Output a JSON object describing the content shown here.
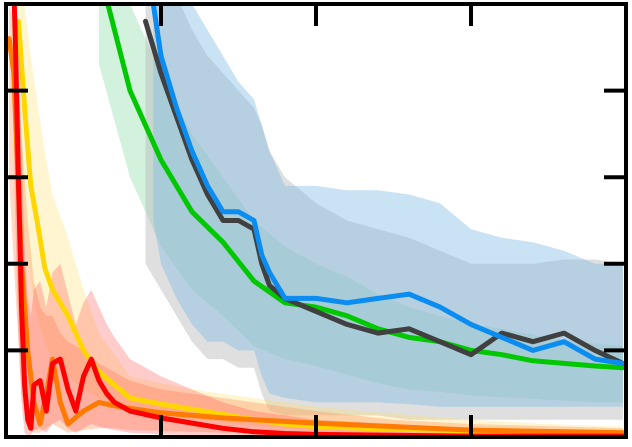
{
  "chart_data": {
    "type": "line",
    "title": "",
    "xlabel": "",
    "ylabel": "",
    "xlim": [
      0,
      400
    ],
    "ylim": [
      0,
      500
    ],
    "grid": false,
    "legend": "none",
    "x_ticks": [
      100,
      200,
      300
    ],
    "y_ticks": [
      100,
      200,
      300,
      400
    ],
    "series": [
      {
        "color": "#00c800",
        "band_color": "#7fd9a0",
        "band_opacity": 0.35,
        "x": [
          60,
          80,
          100,
          120,
          140,
          160,
          180,
          200,
          220,
          240,
          260,
          280,
          300,
          320,
          340,
          360,
          380,
          398
        ],
        "values": [
          540,
          400,
          320,
          260,
          225,
          180,
          155,
          150,
          140,
          125,
          115,
          110,
          100,
          95,
          88,
          85,
          82,
          80
        ],
        "band_low": [
          430,
          300,
          220,
          170,
          140,
          105,
          90,
          82,
          72,
          62,
          55,
          52,
          48,
          46,
          44,
          42,
          40,
          40
        ],
        "band_high": [
          600,
          500,
          420,
          350,
          300,
          250,
          220,
          200,
          185,
          165,
          150,
          140,
          130,
          125,
          118,
          112,
          108,
          105
        ]
      },
      {
        "color": "#404040",
        "band_color": "#b8b8b8",
        "band_opacity": 0.45,
        "x": [
          90,
          100,
          110,
          120,
          130,
          140,
          150,
          160,
          165,
          170,
          180,
          200,
          220,
          240,
          260,
          280,
          300,
          320,
          340,
          360,
          380,
          398
        ],
        "values": [
          480,
          420,
          370,
          320,
          280,
          250,
          250,
          240,
          200,
          175,
          160,
          145,
          130,
          120,
          125,
          110,
          95,
          120,
          110,
          120,
          100,
          85
        ],
        "band_low": [
          200,
          170,
          140,
          110,
          90,
          90,
          80,
          80,
          50,
          30,
          25,
          25,
          25,
          25,
          20,
          20,
          20,
          20,
          20,
          20,
          20,
          20
        ],
        "band_high": [
          560,
          540,
          510,
          470,
          440,
          420,
          400,
          380,
          360,
          330,
          300,
          270,
          250,
          240,
          230,
          215,
          200,
          200,
          200,
          205,
          205,
          200
        ]
      },
      {
        "color": "#0a8cf0",
        "band_color": "#78b9e6",
        "band_opacity": 0.4,
        "x": [
          95,
          100,
          110,
          120,
          130,
          140,
          150,
          160,
          165,
          170,
          180,
          200,
          220,
          240,
          260,
          280,
          300,
          320,
          340,
          360,
          380,
          398
        ],
        "values": [
          500,
          440,
          380,
          330,
          290,
          260,
          260,
          250,
          210,
          190,
          160,
          160,
          155,
          160,
          165,
          150,
          130,
          115,
          100,
          110,
          90,
          85
        ],
        "band_low": [
          250,
          200,
          160,
          130,
          110,
          110,
          100,
          100,
          70,
          50,
          45,
          40,
          40,
          40,
          38,
          35,
          35,
          35,
          35,
          35,
          35,
          35
        ],
        "band_high": [
          560,
          550,
          530,
          500,
          470,
          440,
          410,
          390,
          360,
          330,
          290,
          290,
          285,
          285,
          280,
          270,
          240,
          230,
          225,
          215,
          200,
          200
        ]
      },
      {
        "color": "#ffd600",
        "band_color": "#ffe066",
        "band_opacity": 0.3,
        "x": [
          8,
          12,
          16,
          20,
          25,
          30,
          40,
          50,
          60,
          70,
          80,
          100,
          120,
          140,
          160,
          180,
          200,
          250,
          300,
          350,
          398
        ],
        "values": [
          480,
          380,
          290,
          250,
          195,
          170,
          140,
          100,
          75,
          60,
          45,
          38,
          32,
          26,
          20,
          15,
          12,
          9,
          7,
          6,
          5
        ],
        "band_low": [
          300,
          230,
          180,
          140,
          110,
          90,
          70,
          55,
          45,
          38,
          30,
          26,
          21,
          17,
          13,
          10,
          8,
          6,
          5,
          4,
          3
        ],
        "band_high": [
          540,
          500,
          440,
          390,
          330,
          280,
          230,
          170,
          120,
          95,
          70,
          62,
          55,
          50,
          45,
          40,
          35,
          27,
          20,
          15,
          12
        ]
      },
      {
        "color": "#ff7a00",
        "band_color": "#ff9a66",
        "band_opacity": 0.4,
        "x": [
          2,
          5,
          10,
          14,
          18,
          22,
          26,
          30,
          35,
          40,
          50,
          60,
          70,
          80,
          100,
          120,
          140,
          160,
          180,
          200,
          250,
          300,
          398
        ],
        "values": [
          460,
          420,
          200,
          100,
          40,
          15,
          50,
          90,
          40,
          15,
          30,
          40,
          36,
          33,
          28,
          25,
          22,
          20,
          18,
          16,
          12,
          8,
          5
        ],
        "band_low": [
          300,
          200,
          50,
          10,
          5,
          5,
          10,
          15,
          10,
          5,
          8,
          10,
          10,
          8,
          7,
          6,
          5,
          5,
          4,
          4,
          3,
          2,
          2
        ],
        "band_high": [
          500,
          480,
          350,
          250,
          180,
          150,
          140,
          140,
          120,
          110,
          100,
          85,
          75,
          65,
          55,
          50,
          45,
          40,
          35,
          30,
          20,
          15,
          10
        ]
      },
      {
        "color": "#ff0000",
        "band_color": "#ff5555",
        "band_opacity": 0.3,
        "x": [
          5,
          6,
          8,
          10,
          12,
          14,
          16,
          18,
          22,
          26,
          30,
          35,
          40,
          45,
          50,
          55,
          60,
          65,
          70,
          80,
          100,
          120,
          140,
          160,
          180,
          200,
          250,
          300,
          398
        ],
        "values": [
          520,
          460,
          300,
          150,
          60,
          20,
          10,
          60,
          65,
          30,
          85,
          90,
          55,
          30,
          70,
          90,
          65,
          50,
          40,
          30,
          22,
          16,
          10,
          6,
          4,
          3,
          2,
          1,
          1
        ],
        "band_low": [
          350,
          250,
          120,
          40,
          5,
          2,
          2,
          8,
          10,
          5,
          15,
          20,
          10,
          5,
          10,
          15,
          12,
          10,
          8,
          5,
          3,
          2,
          1,
          1,
          0,
          0,
          0,
          0,
          0
        ],
        "band_high": [
          560,
          540,
          460,
          330,
          220,
          160,
          140,
          170,
          180,
          150,
          190,
          200,
          165,
          130,
          155,
          170,
          150,
          130,
          115,
          90,
          70,
          55,
          40,
          30,
          25,
          20,
          15,
          10,
          8
        ]
      }
    ]
  }
}
